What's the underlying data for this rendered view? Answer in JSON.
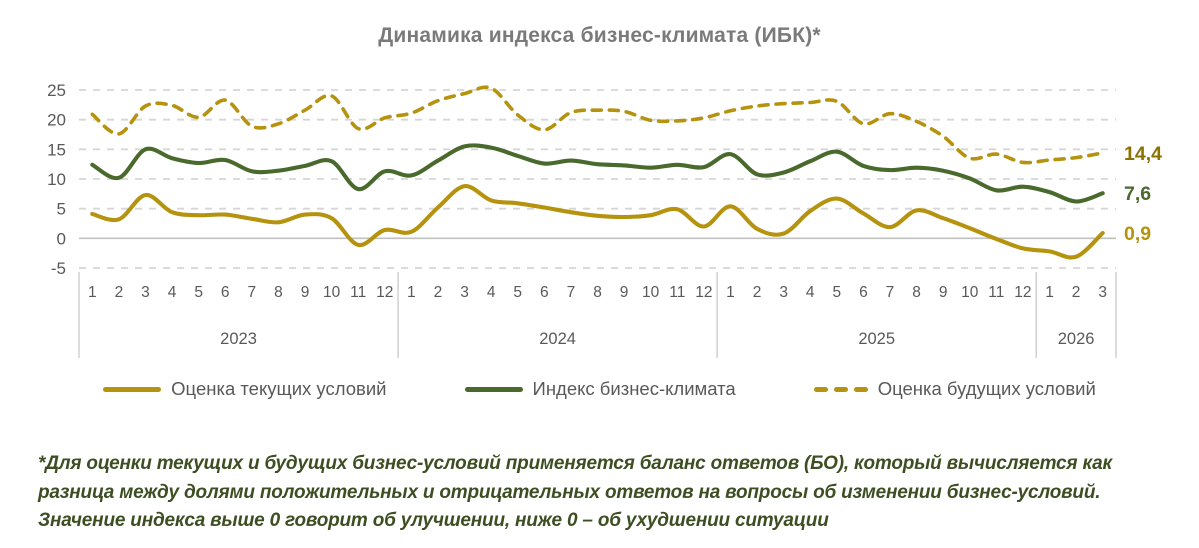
{
  "title": "Динамика индекса бизнес-климата (ИБК)*",
  "footnote": "*Для оценки текущих и будущих бизнес-условий применяется баланс ответов (БО), который вычисляется как разница между долями положительных и отрицательных ответов на вопросы об изменении бизнес-условий. Значение индекса выше 0 говорит об улучшении, ниже 0 – об ухудшении ситуации",
  "colors": {
    "gold": "#B5930E",
    "green": "#4A6A2D",
    "gold_dark_label": "#8C7000",
    "axis_text": "#595959",
    "title_text": "#7A7A7A",
    "gridline": "#D6D6D6",
    "zero_line": "#C0C0C0",
    "separator": "#C9C9C9",
    "footnote_text": "#3D4F22"
  },
  "legend": [
    {
      "label": "Оценка текущих условий",
      "style": "solid",
      "color": "#B5930E"
    },
    {
      "label": "Индекс бизнес-климата",
      "style": "solid",
      "color": "#4A6A2D"
    },
    {
      "label": "Оценка будущих условий",
      "style": "dashed",
      "color": "#B5930E"
    }
  ],
  "chart_data": {
    "type": "line",
    "title": "Динамика индекса бизнес-климата (ИБК)*",
    "ylim": [
      -5,
      25
    ],
    "yticks": [
      25,
      20,
      15,
      10,
      5,
      0,
      -5
    ],
    "grid": "horizontal-dashed, zero-line-solid, legend-bottom",
    "x_axis": {
      "years": [
        {
          "label": "2023",
          "months": [
            "1",
            "2",
            "3",
            "4",
            "5",
            "6",
            "7",
            "8",
            "9",
            "10",
            "11",
            "12"
          ]
        },
        {
          "label": "2024",
          "months": [
            "1",
            "2",
            "3",
            "4",
            "5",
            "6",
            "7",
            "8",
            "9",
            "10",
            "11",
            "12"
          ]
        },
        {
          "label": "2025",
          "months": [
            "1",
            "2",
            "3",
            "4",
            "5",
            "6",
            "7",
            "8",
            "9",
            "10",
            "11",
            "12"
          ]
        },
        {
          "label": "2026",
          "months": [
            "1",
            "2",
            "3"
          ]
        }
      ]
    },
    "series": [
      {
        "name": "Оценка будущих условий",
        "dash": true,
        "color": "#B5930E",
        "end_label": "14,4",
        "end_label_color": "#8C7000",
        "values": [
          20.9,
          17.6,
          22.3,
          22.4,
          20.4,
          23.3,
          18.9,
          19.3,
          21.6,
          24.0,
          18.5,
          20.3,
          21.1,
          23.2,
          24.4,
          25.3,
          20.8,
          18.3,
          21.2,
          21.6,
          21.4,
          19.9,
          19.8,
          20.3,
          21.5,
          22.3,
          22.7,
          22.9,
          23.1,
          19.3,
          21.0,
          19.7,
          17.2,
          13.5,
          14.2,
          12.8,
          13.2,
          13.6,
          14.4
        ]
      },
      {
        "name": "Индекс бизнес-климата",
        "dash": false,
        "color": "#4A6A2D",
        "end_label": "7,6",
        "end_label_color": "#4A6A2D",
        "values": [
          12.4,
          10.2,
          15.0,
          13.5,
          12.7,
          13.2,
          11.3,
          11.4,
          12.2,
          13.0,
          8.3,
          11.3,
          10.6,
          13.1,
          15.5,
          15.3,
          13.9,
          12.6,
          13.1,
          12.5,
          12.3,
          11.9,
          12.4,
          12.0,
          14.2,
          10.8,
          11.1,
          13.0,
          14.6,
          12.2,
          11.5,
          11.9,
          11.4,
          10.1,
          8.1,
          8.7,
          7.8,
          6.2,
          7.6
        ]
      },
      {
        "name": "Оценка текущих условий",
        "dash": false,
        "color": "#B5930E",
        "end_label": "0,9",
        "end_label_color": "#B5930E",
        "values": [
          4.1,
          3.2,
          7.3,
          4.4,
          3.9,
          4.0,
          3.3,
          2.7,
          4.0,
          3.4,
          -1.1,
          1.4,
          1.1,
          5.2,
          8.8,
          6.4,
          5.9,
          5.2,
          4.4,
          3.8,
          3.6,
          3.9,
          4.9,
          2.0,
          5.4,
          1.6,
          0.8,
          4.6,
          6.7,
          4.2,
          1.9,
          4.7,
          3.4,
          1.7,
          -0.1,
          -1.7,
          -2.2,
          -3.1,
          0.9
        ]
      }
    ]
  }
}
